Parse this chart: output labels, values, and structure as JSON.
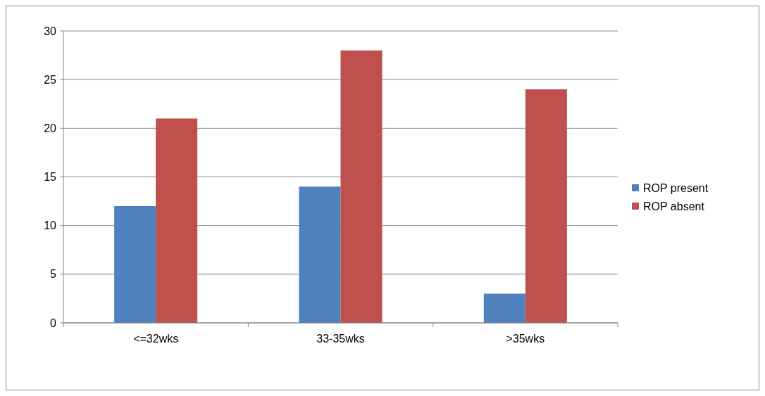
{
  "chart_data": {
    "type": "bar",
    "categories": [
      "<=32wks",
      "33-35wks",
      ">35wks"
    ],
    "series": [
      {
        "name": "ROP present",
        "color": "#4f81bd",
        "values": [
          12,
          14,
          3
        ]
      },
      {
        "name": "ROP absent",
        "color": "#c0504d",
        "values": [
          21,
          28,
          24
        ]
      }
    ],
    "ylim": [
      0,
      30
    ],
    "yticks": [
      0,
      5,
      10,
      15,
      20,
      25,
      30
    ],
    "grid": "y",
    "legend": "right"
  }
}
